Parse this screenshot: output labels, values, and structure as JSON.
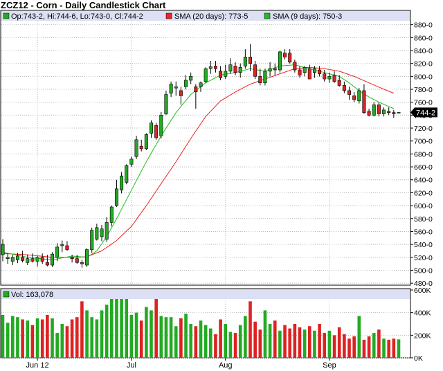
{
  "title": "ZCZ12 - Corn - Daily Candlestick Chart",
  "legend": {
    "ohlc": "Op:743-2, Hi:744-6, Lo:743-0, Cl:744-2",
    "sma20": "SMA (20 days): 773-5",
    "sma9": "SMA (9 days): 750-3",
    "volume": "Vol: 163,078",
    "last_price": "744-2"
  },
  "colors": {
    "up": "#22aa22",
    "down": "#dd2222",
    "sma20": "#ee2222",
    "sma9": "#22bb22",
    "legend_bg": "#dde0f4",
    "grid": "#bbbbbb"
  },
  "chart_data": [
    {
      "type": "candlestick",
      "title": "ZCZ12 - Corn - Daily Candlestick Chart",
      "x_ticks": [
        {
          "label": "Jun 12",
          "index": 7
        },
        {
          "label": "Jul",
          "index": 26
        },
        {
          "label": "Aug",
          "index": 45
        },
        {
          "label": "Sep",
          "index": 66
        }
      ],
      "y_ticks": [
        "880-0",
        "860-0",
        "840-0",
        "820-0",
        "800-0",
        "780-0",
        "760-0",
        "740-0",
        "720-0",
        "700-0",
        "680-0",
        "660-0",
        "640-0",
        "620-0",
        "600-0",
        "580-0",
        "560-0",
        "540-0",
        "520-0",
        "500-0",
        "480-0"
      ],
      "ylim": [
        478,
        885
      ],
      "y_tick_values": [
        880,
        860,
        840,
        820,
        800,
        780,
        760,
        740,
        720,
        700,
        680,
        660,
        640,
        620,
        600,
        580,
        560,
        540,
        520,
        500,
        480
      ],
      "candles": [
        {
          "o": 524,
          "h": 548,
          "l": 514,
          "c": 540
        },
        {
          "o": 518,
          "h": 526,
          "l": 510,
          "c": 520
        },
        {
          "o": 514,
          "h": 524,
          "l": 508,
          "c": 520
        },
        {
          "o": 516,
          "h": 527,
          "l": 511,
          "c": 522
        },
        {
          "o": 520,
          "h": 530,
          "l": 512,
          "c": 515
        },
        {
          "o": 512,
          "h": 524,
          "l": 508,
          "c": 518
        },
        {
          "o": 518,
          "h": 526,
          "l": 512,
          "c": 514
        },
        {
          "o": 514,
          "h": 522,
          "l": 506,
          "c": 520
        },
        {
          "o": 520,
          "h": 526,
          "l": 510,
          "c": 514
        },
        {
          "o": 512,
          "h": 524,
          "l": 506,
          "c": 508
        },
        {
          "o": 508,
          "h": 528,
          "l": 505,
          "c": 525
        },
        {
          "o": 520,
          "h": 542,
          "l": 514,
          "c": 536
        },
        {
          "o": 538,
          "h": 546,
          "l": 528,
          "c": 540
        },
        {
          "o": 538,
          "h": 545,
          "l": 530,
          "c": 532
        },
        {
          "o": 520,
          "h": 524,
          "l": 512,
          "c": 518
        },
        {
          "o": 518,
          "h": 524,
          "l": 510,
          "c": 512
        },
        {
          "o": 512,
          "h": 516,
          "l": 504,
          "c": 510
        },
        {
          "o": 508,
          "h": 534,
          "l": 505,
          "c": 532
        },
        {
          "o": 532,
          "h": 566,
          "l": 527,
          "c": 562
        },
        {
          "o": 548,
          "h": 572,
          "l": 546,
          "c": 566
        },
        {
          "o": 552,
          "h": 570,
          "l": 545,
          "c": 564
        },
        {
          "o": 548,
          "h": 582,
          "l": 544,
          "c": 574
        },
        {
          "o": 574,
          "h": 600,
          "l": 568,
          "c": 598
        },
        {
          "o": 600,
          "h": 640,
          "l": 598,
          "c": 626
        },
        {
          "o": 624,
          "h": 652,
          "l": 619,
          "c": 646
        },
        {
          "o": 636,
          "h": 664,
          "l": 633,
          "c": 662
        },
        {
          "o": 664,
          "h": 676,
          "l": 660,
          "c": 672
        },
        {
          "o": 676,
          "h": 708,
          "l": 672,
          "c": 702
        },
        {
          "o": 692,
          "h": 702,
          "l": 684,
          "c": 688
        },
        {
          "o": 688,
          "h": 712,
          "l": 686,
          "c": 710
        },
        {
          "o": 712,
          "h": 732,
          "l": 705,
          "c": 728
        },
        {
          "o": 724,
          "h": 728,
          "l": 702,
          "c": 705
        },
        {
          "o": 708,
          "h": 745,
          "l": 704,
          "c": 740
        },
        {
          "o": 742,
          "h": 778,
          "l": 740,
          "c": 772
        },
        {
          "o": 774,
          "h": 792,
          "l": 768,
          "c": 788
        },
        {
          "o": 782,
          "h": 792,
          "l": 770,
          "c": 784
        },
        {
          "o": 778,
          "h": 784,
          "l": 756,
          "c": 770
        },
        {
          "o": 784,
          "h": 802,
          "l": 780,
          "c": 794
        },
        {
          "o": 794,
          "h": 806,
          "l": 788,
          "c": 800
        },
        {
          "o": 784,
          "h": 788,
          "l": 750,
          "c": 776
        },
        {
          "o": 784,
          "h": 792,
          "l": 776,
          "c": 790
        },
        {
          "o": 792,
          "h": 814,
          "l": 790,
          "c": 812
        },
        {
          "o": 812,
          "h": 824,
          "l": 804,
          "c": 815
        },
        {
          "o": 816,
          "h": 824,
          "l": 806,
          "c": 812
        },
        {
          "o": 808,
          "h": 816,
          "l": 794,
          "c": 798
        },
        {
          "o": 800,
          "h": 818,
          "l": 796,
          "c": 808
        },
        {
          "o": 808,
          "h": 828,
          "l": 804,
          "c": 818
        },
        {
          "o": 816,
          "h": 822,
          "l": 802,
          "c": 806
        },
        {
          "o": 806,
          "h": 820,
          "l": 798,
          "c": 814
        },
        {
          "o": 816,
          "h": 842,
          "l": 812,
          "c": 830
        },
        {
          "o": 830,
          "h": 850,
          "l": 808,
          "c": 820
        },
        {
          "o": 818,
          "h": 824,
          "l": 796,
          "c": 800
        },
        {
          "o": 800,
          "h": 812,
          "l": 786,
          "c": 790
        },
        {
          "o": 790,
          "h": 812,
          "l": 786,
          "c": 808
        },
        {
          "o": 808,
          "h": 822,
          "l": 800,
          "c": 812
        },
        {
          "o": 812,
          "h": 820,
          "l": 802,
          "c": 810
        },
        {
          "o": 810,
          "h": 840,
          "l": 806,
          "c": 838
        },
        {
          "o": 836,
          "h": 842,
          "l": 826,
          "c": 830
        },
        {
          "o": 836,
          "h": 842,
          "l": 820,
          "c": 822
        },
        {
          "o": 822,
          "h": 826,
          "l": 806,
          "c": 810
        },
        {
          "o": 810,
          "h": 816,
          "l": 798,
          "c": 802
        },
        {
          "o": 806,
          "h": 816,
          "l": 800,
          "c": 814
        },
        {
          "o": 812,
          "h": 818,
          "l": 800,
          "c": 796
        },
        {
          "o": 806,
          "h": 816,
          "l": 798,
          "c": 812
        },
        {
          "o": 810,
          "h": 816,
          "l": 800,
          "c": 804
        },
        {
          "o": 804,
          "h": 810,
          "l": 792,
          "c": 796
        },
        {
          "o": 796,
          "h": 806,
          "l": 790,
          "c": 800
        },
        {
          "o": 802,
          "h": 808,
          "l": 790,
          "c": 792
        },
        {
          "o": 794,
          "h": 802,
          "l": 784,
          "c": 786
        },
        {
          "o": 786,
          "h": 792,
          "l": 774,
          "c": 778
        },
        {
          "o": 778,
          "h": 784,
          "l": 764,
          "c": 772
        },
        {
          "o": 770,
          "h": 776,
          "l": 760,
          "c": 764
        },
        {
          "o": 762,
          "h": 782,
          "l": 758,
          "c": 778
        },
        {
          "o": 778,
          "h": 788,
          "l": 742,
          "c": 744
        },
        {
          "o": 746,
          "h": 750,
          "l": 738,
          "c": 740
        },
        {
          "o": 740,
          "h": 760,
          "l": 738,
          "c": 756
        },
        {
          "o": 756,
          "h": 760,
          "l": 738,
          "c": 742
        },
        {
          "o": 742,
          "h": 752,
          "l": 738,
          "c": 748
        },
        {
          "o": 746,
          "h": 752,
          "l": 740,
          "c": 744
        },
        {
          "o": 744,
          "h": 748,
          "l": 736,
          "c": 742
        },
        {
          "o": 743.25,
          "h": 744.75,
          "l": 743,
          "c": 744.25
        }
      ],
      "sma20": [
        {
          "i": 0,
          "v": 526
        },
        {
          "i": 5,
          "v": 524
        },
        {
          "i": 10,
          "v": 520
        },
        {
          "i": 15,
          "v": 520
        },
        {
          "i": 17,
          "v": 521
        },
        {
          "i": 20,
          "v": 530
        },
        {
          "i": 23,
          "v": 546
        },
        {
          "i": 26,
          "v": 568
        },
        {
          "i": 29,
          "v": 600
        },
        {
          "i": 32,
          "v": 634
        },
        {
          "i": 35,
          "v": 668
        },
        {
          "i": 38,
          "v": 704
        },
        {
          "i": 41,
          "v": 738
        },
        {
          "i": 44,
          "v": 762
        },
        {
          "i": 47,
          "v": 776
        },
        {
          "i": 50,
          "v": 788
        },
        {
          "i": 53,
          "v": 796
        },
        {
          "i": 56,
          "v": 804
        },
        {
          "i": 59,
          "v": 812
        },
        {
          "i": 62,
          "v": 814
        },
        {
          "i": 65,
          "v": 812
        },
        {
          "i": 68,
          "v": 808
        },
        {
          "i": 71,
          "v": 800
        },
        {
          "i": 74,
          "v": 790
        },
        {
          "i": 77,
          "v": 780
        },
        {
          "i": 79,
          "v": 774
        }
      ],
      "sma9": [
        {
          "i": 0,
          "v": 528
        },
        {
          "i": 5,
          "v": 520
        },
        {
          "i": 10,
          "v": 516
        },
        {
          "i": 14,
          "v": 522
        },
        {
          "i": 17,
          "v": 520
        },
        {
          "i": 19,
          "v": 530
        },
        {
          "i": 21,
          "v": 552
        },
        {
          "i": 23,
          "v": 580
        },
        {
          "i": 26,
          "v": 624
        },
        {
          "i": 29,
          "v": 668
        },
        {
          "i": 32,
          "v": 708
        },
        {
          "i": 35,
          "v": 744
        },
        {
          "i": 38,
          "v": 772
        },
        {
          "i": 41,
          "v": 790
        },
        {
          "i": 44,
          "v": 802
        },
        {
          "i": 47,
          "v": 806
        },
        {
          "i": 50,
          "v": 812
        },
        {
          "i": 53,
          "v": 808
        },
        {
          "i": 56,
          "v": 816
        },
        {
          "i": 59,
          "v": 818
        },
        {
          "i": 62,
          "v": 812
        },
        {
          "i": 65,
          "v": 806
        },
        {
          "i": 68,
          "v": 800
        },
        {
          "i": 70,
          "v": 790
        },
        {
          "i": 72,
          "v": 778
        },
        {
          "i": 74,
          "v": 768
        },
        {
          "i": 76,
          "v": 760
        },
        {
          "i": 79,
          "v": 750
        }
      ]
    },
    {
      "type": "bar",
      "title": "Volume",
      "y_ticks": [
        "600K",
        "400K",
        "200K",
        "0K"
      ],
      "y_tick_values": [
        600000,
        400000,
        200000,
        0
      ],
      "ylim": [
        0,
        600000
      ],
      "values": [
        380000,
        310000,
        370000,
        360000,
        340000,
        330000,
        290000,
        350000,
        340000,
        380000,
        350000,
        220000,
        300000,
        280000,
        340000,
        360000,
        500000,
        420000,
        360000,
        340000,
        420000,
        470000,
        530000,
        600000,
        600000,
        560000,
        380000,
        400000,
        330000,
        450000,
        420000,
        600000,
        370000,
        360000,
        360000,
        280000,
        350000,
        390000,
        300000,
        280000,
        330000,
        290000,
        260000,
        210000,
        340000,
        300000,
        230000,
        220000,
        290000,
        370000,
        500000,
        320000,
        250000,
        420000,
        300000,
        330000,
        240000,
        290000,
        260000,
        300000,
        270000,
        250000,
        280000,
        240000,
        300000,
        220000,
        240000,
        200000,
        270000,
        210000,
        170000,
        190000,
        370000,
        160000,
        190000,
        220000,
        250000,
        170000,
        160000,
        170000,
        163078
      ]
    }
  ]
}
